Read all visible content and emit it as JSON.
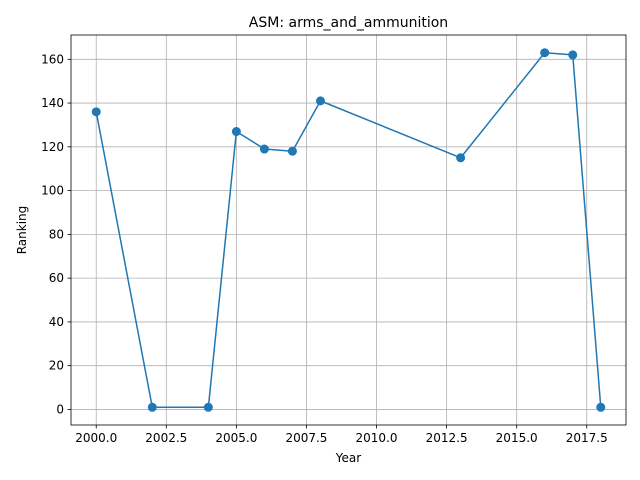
{
  "chart_data": {
    "type": "line",
    "title": "ASM: arms_and_ammunition",
    "xlabel": "Year",
    "ylabel": "Ranking",
    "xlim": [
      1999.1,
      2018.9
    ],
    "ylim": [
      -7.1,
      171.1
    ],
    "x_ticks": [
      2000.0,
      2002.5,
      2005.0,
      2007.5,
      2010.0,
      2012.5,
      2015.0,
      2017.5
    ],
    "x_tick_labels": [
      "2000.0",
      "2002.5",
      "2005.0",
      "2007.5",
      "2010.0",
      "2012.5",
      "2015.0",
      "2017.5"
    ],
    "y_ticks": [
      0,
      20,
      40,
      60,
      80,
      100,
      120,
      140,
      160
    ],
    "y_tick_labels": [
      "0",
      "20",
      "40",
      "60",
      "80",
      "100",
      "120",
      "140",
      "160"
    ],
    "grid": true,
    "series": [
      {
        "color": "#1f77b4",
        "x": [
          2000,
          2002,
          2004,
          2005,
          2006,
          2007,
          2008,
          2013,
          2016,
          2017,
          2018
        ],
        "values": [
          136,
          1,
          1,
          127,
          119,
          118,
          141,
          115,
          163,
          162,
          1
        ]
      }
    ]
  }
}
